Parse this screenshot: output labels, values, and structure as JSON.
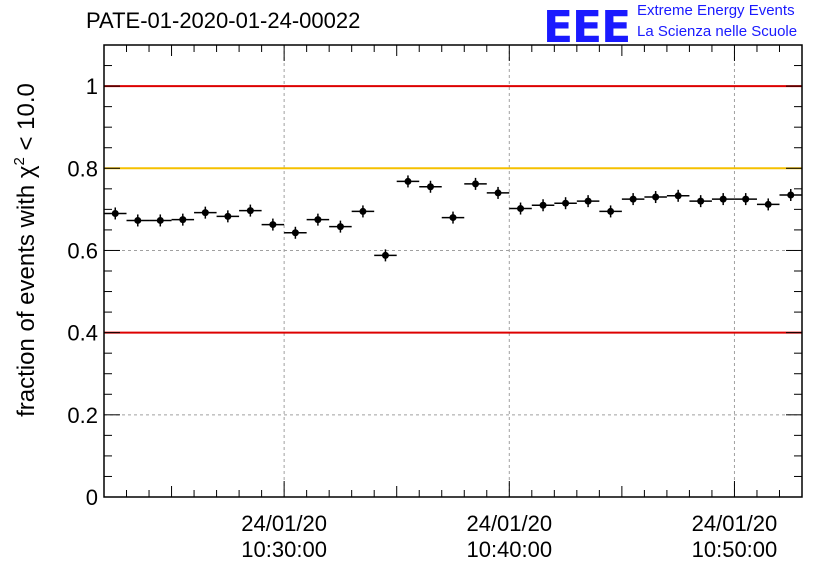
{
  "header": {
    "run_title": "PATE-01-2020-01-24-00022",
    "logo_mark": "EEE",
    "logo_line1": "Extreme Energy Events",
    "logo_line2": "La Scienza nelle Scuole"
  },
  "chart_data": {
    "type": "scatter",
    "title": "PATE-01-2020-01-24-00022",
    "ylabel": "fraction of events with χ² < 10.0",
    "ylim": [
      0,
      1.1
    ],
    "yticks": [
      0,
      0.2,
      0.4,
      0.6,
      0.8,
      1
    ],
    "ytick_labels": [
      "0",
      "0.2",
      "0.4",
      "0.6",
      "0.8",
      "1"
    ],
    "xlim": [
      "2020-01-24 10:22:00",
      "2020-01-24 10:53:00"
    ],
    "xtick_labels": [
      {
        "date": "24/01/20",
        "time": "10:30:00"
      },
      {
        "date": "24/01/20",
        "time": "10:40:00"
      },
      {
        "date": "24/01/20",
        "time": "10:50:00"
      }
    ],
    "xtick_times": [
      "2020-01-24 10:30:00",
      "2020-01-24 10:40:00",
      "2020-01-24 10:50:00"
    ],
    "grid": true,
    "reference_lines": [
      {
        "y": 1.0,
        "color": "#dd0000"
      },
      {
        "y": 0.8,
        "color": "#f5c000"
      },
      {
        "y": 0.4,
        "color": "#dd0000"
      }
    ],
    "points": [
      {
        "x": "2020-01-24 10:22:30",
        "y": 0.69
      },
      {
        "x": "2020-01-24 10:23:30",
        "y": 0.673
      },
      {
        "x": "2020-01-24 10:24:30",
        "y": 0.673
      },
      {
        "x": "2020-01-24 10:25:30",
        "y": 0.675
      },
      {
        "x": "2020-01-24 10:26:30",
        "y": 0.692
      },
      {
        "x": "2020-01-24 10:27:30",
        "y": 0.683
      },
      {
        "x": "2020-01-24 10:28:30",
        "y": 0.697
      },
      {
        "x": "2020-01-24 10:29:30",
        "y": 0.663
      },
      {
        "x": "2020-01-24 10:30:30",
        "y": 0.643
      },
      {
        "x": "2020-01-24 10:31:30",
        "y": 0.675
      },
      {
        "x": "2020-01-24 10:32:30",
        "y": 0.658
      },
      {
        "x": "2020-01-24 10:33:30",
        "y": 0.695
      },
      {
        "x": "2020-01-24 10:34:30",
        "y": 0.588
      },
      {
        "x": "2020-01-24 10:35:30",
        "y": 0.768
      },
      {
        "x": "2020-01-24 10:36:30",
        "y": 0.755
      },
      {
        "x": "2020-01-24 10:37:30",
        "y": 0.68
      },
      {
        "x": "2020-01-24 10:38:30",
        "y": 0.762
      },
      {
        "x": "2020-01-24 10:39:30",
        "y": 0.74
      },
      {
        "x": "2020-01-24 10:40:30",
        "y": 0.702
      },
      {
        "x": "2020-01-24 10:41:30",
        "y": 0.71
      },
      {
        "x": "2020-01-24 10:42:30",
        "y": 0.715
      },
      {
        "x": "2020-01-24 10:43:30",
        "y": 0.72
      },
      {
        "x": "2020-01-24 10:44:30",
        "y": 0.695
      },
      {
        "x": "2020-01-24 10:45:30",
        "y": 0.725
      },
      {
        "x": "2020-01-24 10:46:30",
        "y": 0.73
      },
      {
        "x": "2020-01-24 10:47:30",
        "y": 0.733
      },
      {
        "x": "2020-01-24 10:48:30",
        "y": 0.72
      },
      {
        "x": "2020-01-24 10:49:30",
        "y": 0.725
      },
      {
        "x": "2020-01-24 10:50:30",
        "y": 0.725
      },
      {
        "x": "2020-01-24 10:51:30",
        "y": 0.712
      },
      {
        "x": "2020-01-24 10:52:30",
        "y": 0.735
      }
    ]
  }
}
